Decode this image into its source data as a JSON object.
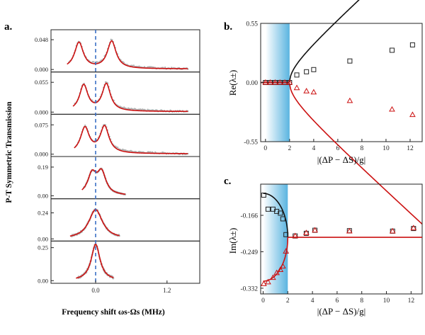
{
  "figure": {
    "panel_labels": [
      "a.",
      "b.",
      "c."
    ]
  },
  "chart_data": [
    {
      "id": "a",
      "type": "line",
      "title": "a.",
      "xlabel": "Frequency shift ωs-Ωs (MHz)",
      "ylabel": "P-T Symmetric Transmission",
      "xlim": [
        -0.75,
        1.75
      ],
      "x_ticks": [
        {
          "value": 0.0,
          "label": "0.0"
        },
        {
          "value": 1.2,
          "label": "1.2"
        }
      ],
      "dashed_vline_x": 0.0,
      "colors": {
        "fit": "#cc1111",
        "data": "#b0b0b0",
        "vline": "#3a6fc4",
        "frame": "#222222"
      },
      "subpanels": [
        {
          "ylim": [
            -0.004,
            0.064
          ],
          "ticks": [
            {
              "value": 0.0,
              "label": "0.000"
            },
            {
              "value": 0.048,
              "label": "0.048"
            }
          ],
          "peaks": [
            {
              "center": -0.28,
              "amplitude": 0.042,
              "width": 0.09
            },
            {
              "center": 0.27,
              "amplitude": 0.044,
              "width": 0.09
            }
          ],
          "baseline": 0.001,
          "data_x_range": [
            -0.45,
            1.55
          ]
        },
        {
          "ylim": [
            -0.004,
            0.074
          ],
          "ticks": [
            {
              "value": 0.0,
              "label": "0.000"
            },
            {
              "value": 0.055,
              "label": "0.055"
            }
          ],
          "peaks": [
            {
              "center": -0.2,
              "amplitude": 0.048,
              "width": 0.085
            },
            {
              "center": 0.18,
              "amplitude": 0.05,
              "width": 0.085
            }
          ],
          "baseline": 0.001,
          "data_x_range": [
            -0.35,
            1.55
          ]
        },
        {
          "ylim": [
            -0.006,
            0.102
          ],
          "ticks": [
            {
              "value": 0.0,
              "label": "0.000"
            },
            {
              "value": 0.075,
              "label": "0.075"
            }
          ],
          "peaks": [
            {
              "center": -0.18,
              "amplitude": 0.065,
              "width": 0.09
            },
            {
              "center": 0.15,
              "amplitude": 0.068,
              "width": 0.09
            }
          ],
          "baseline": 0.001,
          "data_x_range": [
            -0.33,
            1.55
          ]
        },
        {
          "ylim": [
            -0.02,
            0.26
          ],
          "ticks": [
            {
              "value": 0.0,
              "label": "0.00"
            },
            {
              "value": 0.19,
              "label": "0.19"
            }
          ],
          "peaks": [
            {
              "center": -0.06,
              "amplitude": 0.135,
              "width": 0.09
            },
            {
              "center": 0.1,
              "amplitude": 0.145,
              "width": 0.09
            }
          ],
          "baseline": 0.0,
          "data_x_range": [
            -0.2,
            0.5
          ]
        },
        {
          "ylim": [
            -0.02,
            0.37
          ],
          "ticks": [
            {
              "value": 0.0,
              "label": "0.00"
            },
            {
              "value": 0.24,
              "label": "0.24"
            }
          ],
          "peaks": [
            {
              "center": 0.0,
              "amplitude": 0.27,
              "width": 0.14
            }
          ],
          "baseline": 0.0,
          "data_x_range": [
            -0.4,
            0.4
          ]
        },
        {
          "ylim": [
            -0.02,
            0.3
          ],
          "ticks": [
            {
              "value": 0.0,
              "label": "0.00"
            },
            {
              "value": 0.25,
              "label": "0.25"
            }
          ],
          "peaks": [
            {
              "center": 0.0,
              "amplitude": 0.275,
              "width": 0.09
            }
          ],
          "baseline": 0.0,
          "data_x_range": [
            -0.3,
            0.3
          ]
        }
      ]
    },
    {
      "id": "b",
      "type": "scatter",
      "title": "b.",
      "xlabel": "|(ΔP − ΔS)/g|",
      "ylabel": "Re(λ±)",
      "xlim": [
        -0.4,
        13
      ],
      "ylim": [
        -0.55,
        0.55
      ],
      "x_ticks": [
        0,
        2,
        4,
        6,
        8,
        10,
        12
      ],
      "y_ticks": [
        {
          "value": -0.55,
          "label": "-0.55"
        },
        {
          "value": 0.0,
          "label": "0.00"
        },
        {
          "value": 0.55,
          "label": "0.55"
        }
      ],
      "shaded_region_x": [
        0,
        2
      ],
      "theory": {
        "threshold": 2.0,
        "coefficient": 0.1025
      },
      "series": [
        {
          "name": "upper branch (squares)",
          "marker": "square",
          "color": "#222222",
          "x": [
            0,
            0.4,
            0.8,
            1.2,
            1.6,
            2.0,
            2.6,
            3.4,
            4.0,
            7.0,
            10.5,
            12.2
          ],
          "y": [
            0,
            0,
            0,
            0,
            0,
            0,
            0.07,
            0.1,
            0.12,
            0.2,
            0.3,
            0.35
          ]
        },
        {
          "name": "lower branch (triangles)",
          "marker": "triangle",
          "color": "#cc1111",
          "x": [
            0,
            0.4,
            0.8,
            1.2,
            1.6,
            2.0,
            2.6,
            3.4,
            4.0,
            7.0,
            10.5,
            12.2
          ],
          "y": [
            0,
            0,
            0,
            0,
            0,
            0,
            -0.05,
            -0.08,
            -0.09,
            -0.17,
            -0.25,
            -0.3
          ]
        }
      ]
    },
    {
      "id": "c",
      "type": "scatter",
      "title": "c.",
      "xlabel": "|(ΔP − ΔS)/g|",
      "ylabel": "Im(λ±)",
      "xlim": [
        -0.2,
        12.9
      ],
      "ylim": [
        -0.345,
        -0.095
      ],
      "x_ticks": [
        0,
        2,
        4,
        6,
        8,
        10,
        12
      ],
      "y_ticks": [
        {
          "value": -0.166,
          "label": "-0.166"
        },
        {
          "value": -0.249,
          "label": "-0.249"
        },
        {
          "value": -0.332,
          "label": "-0.332"
        }
      ],
      "shaded_region_x": [
        0,
        2
      ],
      "theory": {
        "center": -0.216,
        "radius_at_zero": 0.1,
        "threshold": 2.0
      },
      "series": [
        {
          "name": "upper branch (squares)",
          "marker": "square",
          "color": "#222222",
          "x": [
            0.05,
            0.4,
            0.8,
            1.1,
            1.4,
            1.6,
            1.85,
            2.6,
            3.5,
            4.2,
            7.0,
            10.5,
            12.2
          ],
          "y": [
            -0.12,
            -0.152,
            -0.152,
            -0.157,
            -0.161,
            -0.174,
            -0.21,
            -0.213,
            -0.207,
            -0.2,
            -0.201,
            -0.202,
            -0.196
          ]
        },
        {
          "name": "lower branch (triangles)",
          "marker": "triangle",
          "color": "#cc1111",
          "x": [
            0.05,
            0.4,
            0.8,
            1.1,
            1.4,
            1.6,
            1.85,
            2.6,
            3.5,
            4.2,
            7.0,
            10.5,
            12.2
          ],
          "y": [
            -0.322,
            -0.318,
            -0.308,
            -0.297,
            -0.29,
            -0.282,
            -0.248,
            -0.213,
            -0.206,
            -0.2,
            -0.202,
            -0.202,
            -0.195
          ]
        }
      ]
    }
  ]
}
